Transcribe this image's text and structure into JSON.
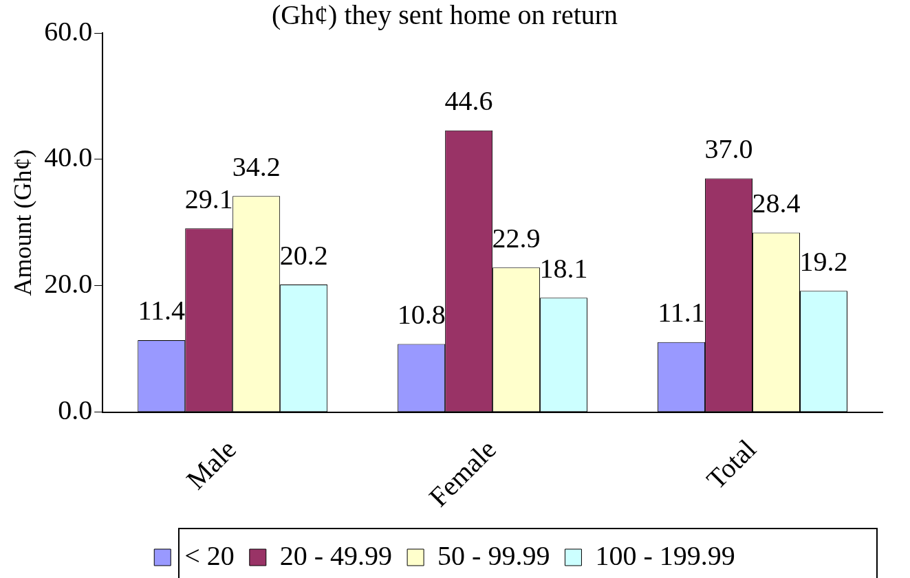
{
  "chart_data": {
    "type": "bar",
    "title": "(Gh¢) they sent home on return",
    "ylabel": "Amount (Gh¢)",
    "categories": [
      "Male",
      "Female",
      "Total"
    ],
    "series": [
      {
        "name": "< 20",
        "color": "#9999ff",
        "values": [
          11.4,
          10.8,
          11.1
        ],
        "value_labels": [
          "11.4",
          "10.8",
          "11.1"
        ]
      },
      {
        "name": "20 - 49.99",
        "color": "#993366",
        "values": [
          29.1,
          44.6,
          37.0
        ],
        "value_labels": [
          "29.1",
          "44.6",
          "37.0"
        ]
      },
      {
        "name": "50 - 99.99",
        "color": "#ffffcc",
        "values": [
          34.2,
          22.9,
          28.4
        ],
        "value_labels": [
          "34.2",
          "22.9",
          "28.4"
        ]
      },
      {
        "name": "100 - 199.99",
        "color": "#ccffff",
        "values": [
          20.2,
          18.1,
          19.2
        ],
        "value_labels": [
          "20.2",
          "18.1",
          "19.2"
        ]
      }
    ],
    "ylim": [
      0,
      60
    ],
    "yticks": [
      {
        "value": 0,
        "label": "0.0"
      },
      {
        "value": 20,
        "label": "20.0"
      },
      {
        "value": 40,
        "label": "40.0"
      },
      {
        "value": 60,
        "label": "60.0"
      }
    ],
    "grid": false,
    "legend": "bottom"
  }
}
